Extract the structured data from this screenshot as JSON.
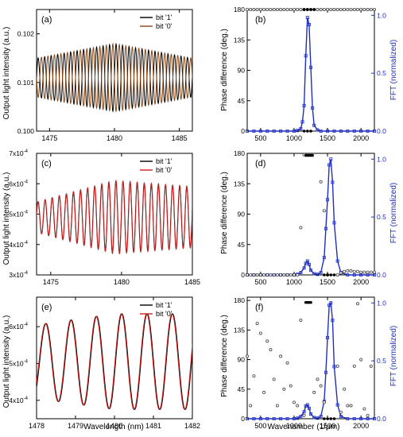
{
  "colors": {
    "bit1": "#000000",
    "bit0": "#8b4513",
    "bit0_red": "#d21f1f",
    "fft": "#1f2fbf",
    "phase_markers": "#444444",
    "phase_markers_fill": "#ffffff",
    "tick_blue": "#1f2fbf"
  },
  "labels": {
    "left_ylabel": "Output light intensity (a.u.)",
    "left_xlabel": "Wavelength (nm)",
    "right_ylabel": "Phase difference (deg.)",
    "right_y2label": "FFT (normalized)",
    "right_xlabel": "Wavenumber (1/μm)"
  },
  "chart_data": [
    {
      "id": "a",
      "panel_label": "(a)",
      "type": "line",
      "xlim": [
        1474,
        1486
      ],
      "ylim": [
        0.1,
        0.1025
      ],
      "xticks": [
        1475,
        1480,
        1485
      ],
      "ytick_labels": [
        "0.100",
        "0.101",
        "0.102"
      ],
      "ytick_values": [
        0.1,
        0.101,
        0.102
      ],
      "legend": {
        "position": "top-right",
        "entries": [
          "bit '1'",
          "bit '0'"
        ]
      },
      "series": [
        {
          "name": "bit '1'",
          "color": "bit1",
          "center": 0.1011,
          "amplitude_env": [
            0.0004,
            0.0007,
            0.0004
          ],
          "period_nm": 0.5,
          "phase": 0
        },
        {
          "name": "bit '0'",
          "color": "bit0",
          "center": 0.1011,
          "amplitude_env": [
            0.0004,
            0.0007,
            0.0004
          ],
          "period_nm": 0.5,
          "phase": 3.1416
        }
      ]
    },
    {
      "id": "b",
      "panel_label": "(b)",
      "type": "line",
      "xlim": [
        300,
        2200
      ],
      "xticks": [
        500,
        1000,
        1500,
        2000
      ],
      "ylim": [
        0,
        180
      ],
      "yticks": [
        0,
        45,
        90,
        135,
        180
      ],
      "y2lim": [
        0,
        1.05
      ],
      "y2ticks": [
        0.0,
        0.5,
        1.0
      ],
      "y2tick_labels": [
        "0.0",
        "0.5",
        "1.0"
      ],
      "phase_x": [
        300,
        350,
        400,
        450,
        500,
        550,
        600,
        650,
        700,
        750,
        800,
        850,
        900,
        950,
        1000,
        1050,
        1100,
        1150,
        1200,
        1250,
        1300,
        1350,
        1400,
        1450,
        1500,
        1550,
        1600,
        1650,
        1700,
        1750,
        1800,
        1850,
        1900,
        1950,
        2000,
        2050,
        2100,
        2150,
        2200
      ],
      "phase_y": [
        180,
        180,
        180,
        180,
        180,
        180,
        180,
        180,
        180,
        180,
        180,
        180,
        180,
        180,
        180,
        180,
        180,
        180,
        180,
        180,
        180,
        180,
        180,
        180,
        180,
        180,
        180,
        180,
        180,
        180,
        180,
        180,
        180,
        180,
        180,
        180,
        180,
        180,
        180
      ],
      "phase_solid_x": [
        1150,
        1200,
        1250,
        1300
      ],
      "phase_solid_y": [
        180,
        180,
        180,
        180
      ],
      "phase_solid_bottom_x": [
        1150,
        1200,
        1250
      ],
      "fft_x": [
        300,
        400,
        500,
        600,
        700,
        800,
        900,
        1000,
        1050,
        1100,
        1125,
        1150,
        1175,
        1200,
        1225,
        1250,
        1275,
        1300,
        1350,
        1400,
        1500,
        1600,
        1700,
        1800,
        1900,
        2000,
        2100,
        2200
      ],
      "fft_y": [
        0,
        0,
        0,
        0,
        0,
        0,
        0,
        0,
        0.005,
        0.02,
        0.08,
        0.22,
        0.65,
        0.98,
        0.92,
        0.55,
        0.2,
        0.05,
        0.01,
        0,
        0,
        0,
        0,
        0,
        0,
        0,
        0,
        0
      ]
    },
    {
      "id": "c",
      "panel_label": "(c)",
      "type": "line",
      "xlim": [
        1474,
        1485
      ],
      "ylim": [
        3.0,
        7.0
      ],
      "xticks": [
        1475,
        1480,
        1485
      ],
      "ytick_labels": [
        "3x10",
        "4x10",
        "5x10",
        "6x10",
        "7x10"
      ],
      "ytick_exp": "-4",
      "ytick_values": [
        3,
        4,
        5,
        6,
        7
      ],
      "legend": {
        "position": "top-right",
        "entries": [
          "bit '1'",
          "bit '0'"
        ]
      },
      "series": [
        {
          "name": "bit '1'",
          "color": "bit1",
          "center": 4.9,
          "amplitude_env": [
            0.5,
            1.2,
            1.0
          ],
          "period_nm": 0.5,
          "phase": 0.3
        },
        {
          "name": "bit '0'",
          "color": "bit0_red",
          "center": 4.9,
          "amplitude_env": [
            0.5,
            1.2,
            1.0
          ],
          "period_nm": 0.5,
          "phase": 0.15
        }
      ]
    },
    {
      "id": "d",
      "panel_label": "(d)",
      "type": "line",
      "xlim": [
        300,
        2200
      ],
      "xticks": [
        500,
        1000,
        1500,
        2000
      ],
      "ylim": [
        0,
        180
      ],
      "yticks": [
        0,
        45,
        90,
        135,
        180
      ],
      "y2lim": [
        0,
        1.05
      ],
      "y2ticks": [
        0.0,
        0.5,
        1.0
      ],
      "y2tick_labels": [
        "0.0",
        "0.5",
        "1.0"
      ],
      "phase_x": [
        300,
        350,
        400,
        450,
        500,
        550,
        600,
        650,
        700,
        750,
        800,
        850,
        900,
        950,
        1000,
        1050,
        1100,
        1150,
        1400,
        1450,
        1500,
        1650,
        1700,
        1750,
        1800,
        1850,
        1900,
        1950,
        2000,
        2050,
        2100,
        2150,
        2200
      ],
      "phase_y": [
        0,
        0,
        0,
        0,
        0,
        0,
        0,
        0,
        0,
        0,
        0,
        0,
        0,
        0,
        0,
        0,
        70,
        178,
        138,
        95,
        0,
        0,
        3,
        5,
        6,
        6,
        5,
        5,
        4,
        4,
        4,
        4,
        4
      ],
      "phase_solid_x": [
        1175,
        1200,
        1225,
        1250,
        1275
      ],
      "phase_solid_y": [
        177,
        177,
        177,
        177,
        177
      ],
      "phase_solid_bottom_x": [
        1450,
        1500,
        1550,
        1600
      ],
      "fft_x": [
        300,
        400,
        500,
        600,
        700,
        800,
        900,
        1000,
        1050,
        1100,
        1150,
        1175,
        1200,
        1225,
        1250,
        1300,
        1350,
        1400,
        1450,
        1475,
        1500,
        1525,
        1550,
        1575,
        1600,
        1650,
        1700,
        1800,
        1900,
        2000,
        2100,
        2200
      ],
      "fft_y": [
        0,
        0,
        0,
        0,
        0,
        0,
        0,
        0,
        0.005,
        0.02,
        0.06,
        0.1,
        0.12,
        0.09,
        0.04,
        0.01,
        0.005,
        0.02,
        0.15,
        0.4,
        0.65,
        0.95,
        1.0,
        0.8,
        0.45,
        0.12,
        0.02,
        0,
        0,
        0,
        0,
        0
      ]
    },
    {
      "id": "e",
      "panel_label": "(e)",
      "type": "line",
      "xlim": [
        1478,
        1482
      ],
      "ylim": [
        3.5,
        6.8
      ],
      "xticks": [
        1478,
        1479,
        1480,
        1481,
        1482
      ],
      "ytick_labels": [
        "4x10",
        "5x10",
        "6x10"
      ],
      "ytick_exp": "-4",
      "ytick_values": [
        4,
        5,
        6
      ],
      "legend": {
        "position": "top-right",
        "entries": [
          "bit '1'",
          "bit '0'"
        ]
      },
      "series": [
        {
          "name": "bit '1'",
          "color": "bit1",
          "center": 5.05,
          "amplitude_env": [
            1.0,
            1.3,
            1.3
          ],
          "period_nm": 0.65,
          "phase": 0.2
        },
        {
          "name": "bit '0'",
          "color": "bit0_red",
          "center": 5.05,
          "amplitude_env": [
            1.0,
            1.3,
            1.3
          ],
          "period_nm": 0.65,
          "phase": 0.35
        }
      ]
    },
    {
      "id": "f",
      "panel_label": "(f)",
      "type": "line",
      "xlim": [
        300,
        2200
      ],
      "xticks": [
        500,
        1000,
        1500,
        2000
      ],
      "ylim": [
        0,
        185
      ],
      "yticks": [
        0,
        45,
        90,
        135,
        180
      ],
      "y2lim": [
        0,
        1.05
      ],
      "y2ticks": [
        0.0,
        0.5,
        1.0
      ],
      "y2tick_labels": [
        "0.0",
        "0.5",
        "1.0"
      ],
      "phase_x": [
        300,
        350,
        400,
        450,
        500,
        550,
        600,
        650,
        700,
        750,
        800,
        850,
        900,
        950,
        1000,
        1050,
        1100,
        1150,
        1300,
        1350,
        1400,
        1450,
        1650,
        1700,
        1750,
        1800,
        1850,
        1900,
        1950,
        2000,
        2050,
        2100,
        2150
      ],
      "phase_y": [
        95,
        20,
        65,
        145,
        130,
        40,
        118,
        105,
        60,
        20,
        95,
        45,
        85,
        50,
        25,
        20,
        150,
        5,
        40,
        60,
        50,
        25,
        80,
        10,
        45,
        20,
        20,
        80,
        175,
        90,
        15,
        5,
        80
      ],
      "phase_solid_x": [
        1175,
        1200,
        1225,
        1250
      ],
      "phase_solid_y": [
        177,
        177,
        177,
        177
      ],
      "phase_solid_bottom_x": [
        1450,
        1500,
        1550,
        1600
      ],
      "fft_x": [
        300,
        400,
        500,
        600,
        700,
        800,
        900,
        1000,
        1050,
        1100,
        1150,
        1175,
        1200,
        1225,
        1250,
        1300,
        1350,
        1400,
        1450,
        1475,
        1500,
        1525,
        1550,
        1575,
        1600,
        1650,
        1700,
        1800,
        1900,
        2000,
        2100,
        2200
      ],
      "fft_y": [
        0,
        0,
        0,
        0,
        0,
        0,
        0,
        0,
        0.005,
        0.02,
        0.06,
        0.11,
        0.12,
        0.09,
        0.04,
        0.01,
        0.005,
        0.02,
        0.15,
        0.4,
        0.7,
        0.98,
        1.0,
        0.85,
        0.45,
        0.12,
        0.02,
        0,
        0,
        0,
        0,
        0
      ]
    }
  ]
}
